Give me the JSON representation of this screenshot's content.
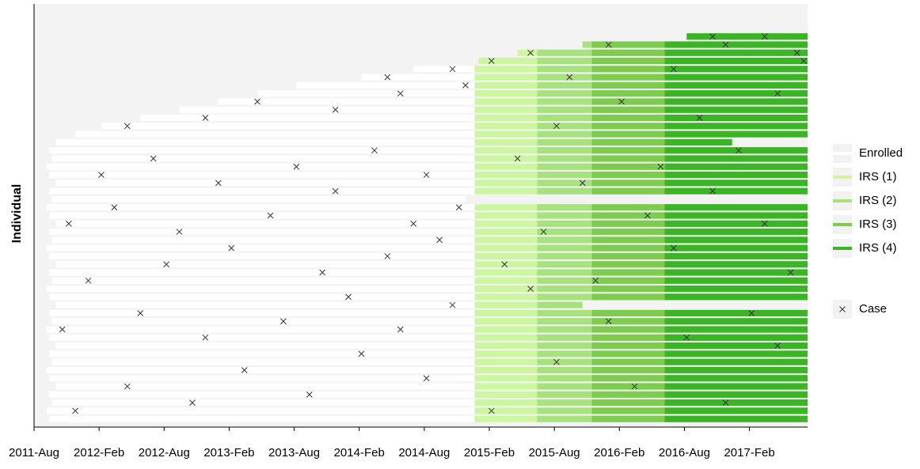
{
  "chart_data": {
    "type": "timeline",
    "y_label": "Individual",
    "xlim": [
      2011.583,
      2017.53
    ],
    "xticks": [
      {
        "value": 2011.583,
        "label": "2011-Aug"
      },
      {
        "value": 2012.083,
        "label": "2012-Feb"
      },
      {
        "value": 2012.583,
        "label": "2012-Aug"
      },
      {
        "value": 2013.083,
        "label": "2013-Feb"
      },
      {
        "value": 2013.583,
        "label": "2013-Aug"
      },
      {
        "value": 2014.083,
        "label": "2014-Feb"
      },
      {
        "value": 2014.583,
        "label": "2014-Aug"
      },
      {
        "value": 2015.083,
        "label": "2015-Feb"
      },
      {
        "value": 2015.583,
        "label": "2015-Aug"
      },
      {
        "value": 2016.083,
        "label": "2016-Feb"
      },
      {
        "value": 2016.583,
        "label": "2016-Aug"
      },
      {
        "value": 2017.083,
        "label": "2017-Feb"
      }
    ],
    "ylim": [
      0,
      52
    ],
    "series": [
      {
        "name": "Enrolled",
        "color": "#ffffff"
      },
      {
        "name": "IRS (1)",
        "color": "#ccf7a0",
        "start": 2014.97
      },
      {
        "name": "IRS (2)",
        "color": "#a8e27f",
        "start": 2015.45
      },
      {
        "name": "IRS (3)",
        "color": "#7dcc4f",
        "start": 2015.87
      },
      {
        "name": "IRS (4)",
        "color": "#3bb526",
        "start": 2016.43
      }
    ],
    "individuals": {
      "start": [
        2011.7,
        2011.68,
        2011.72,
        2011.7,
        2011.75,
        2011.7,
        2011.68,
        2011.72,
        2011.7,
        2011.75,
        2011.7,
        2011.68,
        2011.72,
        2011.7,
        2011.75,
        2011.7,
        2011.68,
        2011.72,
        2011.7,
        2011.75,
        2011.7,
        2011.68,
        2011.72,
        2011.7,
        2011.75,
        2011.7,
        2011.68,
        2011.72,
        2011.7,
        2011.75,
        2011.7,
        2011.68,
        2011.72,
        2011.7,
        2011.75,
        2011.9,
        2012.1,
        2012.4,
        2012.7,
        2013.0,
        2013.3,
        2013.6,
        2014.1,
        2014.5,
        2015.0,
        2015.3,
        2015.8,
        2016.6
      ],
      "end": [
        2017.53,
        2017.53,
        2017.53,
        2017.53,
        2017.53,
        2017.53,
        2017.53,
        2017.53,
        2017.53,
        2017.53,
        2017.53,
        2017.53,
        2017.53,
        2017.53,
        2015.8,
        2017.53,
        2017.53,
        2017.53,
        2017.53,
        2017.53,
        2017.53,
        2017.53,
        2017.53,
        2017.53,
        2017.53,
        2017.53,
        2017.53,
        2014.9,
        2017.53,
        2017.53,
        2017.53,
        2017.53,
        2017.53,
        2017.53,
        2016.95,
        2017.53,
        2017.53,
        2017.53,
        2017.53,
        2017.53,
        2017.53,
        2017.53,
        2017.53,
        2017.53,
        2017.53,
        2017.53,
        2017.53,
        2017.53
      ]
    },
    "cases": {
      "name": "Case",
      "color": "#333333",
      "x": [
        2011.9,
        2012.3,
        2012.8,
        2013.2,
        2013.7,
        2014.1,
        2014.6,
        2015.1,
        2015.6,
        2016.2,
        2016.9,
        2017.3,
        2011.8,
        2012.4,
        2012.9,
        2013.5,
        2014.0,
        2014.4,
        2014.8,
        2015.4,
        2016.0,
        2016.6,
        2017.1,
        2012.0,
        2012.6,
        2013.1,
        2013.8,
        2014.3,
        2014.7,
        2015.2,
        2015.9,
        2016.5,
        2017.4,
        2011.85,
        2012.2,
        2012.7,
        2013.4,
        2013.9,
        2014.5,
        2014.85,
        2015.5,
        2016.3,
        2016.8,
        2017.2,
        2012.1,
        2012.5,
        2013.0,
        2013.6,
        2014.2,
        2014.6,
        2015.3,
        2015.8,
        2016.4,
        2017.0,
        2012.3,
        2012.9,
        2013.3,
        2013.9,
        2014.4,
        2014.9,
        2015.6,
        2016.1,
        2016.7,
        2017.3,
        2014.3,
        2014.8,
        2015.1,
        2015.7,
        2016.5,
        2017.45,
        2015.4,
        2016.0,
        2016.9,
        2017.2,
        2016.8,
        2017.5
      ],
      "y": [
        2,
        5,
        3,
        7,
        4,
        9,
        6,
        2,
        8,
        5,
        3,
        10,
        12,
        14,
        11,
        13,
        16,
        12,
        15,
        17,
        13,
        11,
        14,
        18,
        20,
        22,
        19,
        21,
        23,
        20,
        18,
        22,
        19,
        25,
        27,
        24,
        26,
        29,
        25,
        27,
        24,
        26,
        29,
        25,
        31,
        33,
        30,
        32,
        34,
        31,
        33,
        30,
        32,
        34,
        37,
        38,
        40,
        39,
        41,
        42,
        37,
        40,
        38,
        41,
        43,
        44,
        45,
        43,
        44,
        46,
        46,
        47,
        47,
        48,
        48,
        45
      ]
    }
  }
}
